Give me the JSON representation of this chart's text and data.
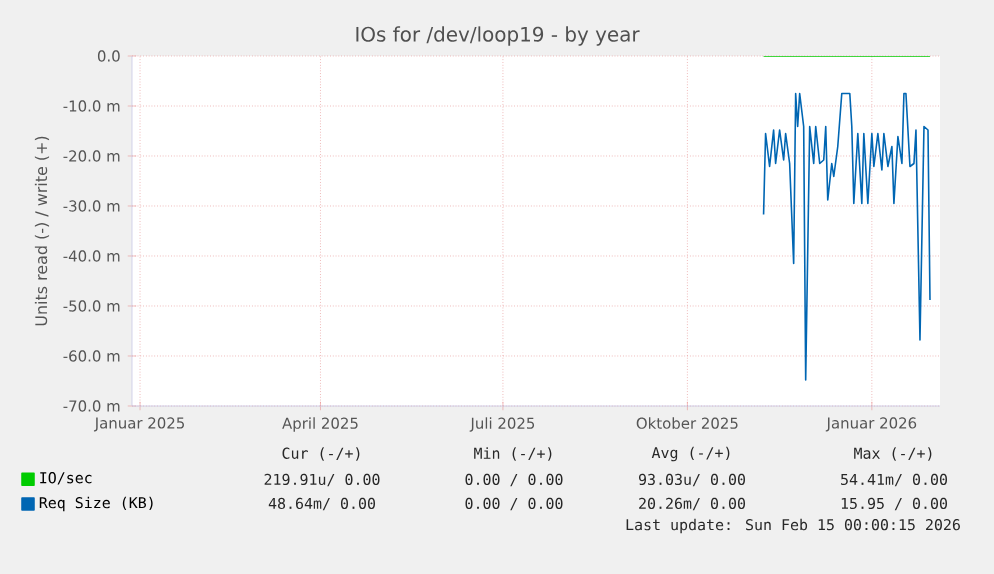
{
  "chart_data": {
    "type": "line",
    "title": "IOs for /dev/loop19 - by year",
    "ylabel": "Units read (-) / write (+)",
    "xlim": [
      "2024-12-28",
      "2026-02-04"
    ],
    "xticks": [
      {
        "value": "2025-01-01",
        "label": "Januar 2025"
      },
      {
        "value": "2025-04-01",
        "label": "April 2025"
      },
      {
        "value": "2025-07-01",
        "label": "Juli 2025"
      },
      {
        "value": "2025-10-01",
        "label": "Oktober 2025"
      },
      {
        "value": "2026-01-01",
        "label": "Januar 2026"
      }
    ],
    "ylim": [
      -70,
      0
    ],
    "yticks": [
      {
        "value": 0,
        "label": "0.0"
      },
      {
        "value": -10,
        "label": "-10.0 m"
      },
      {
        "value": -20,
        "label": "-20.0 m"
      },
      {
        "value": -30,
        "label": "-30.0 m"
      },
      {
        "value": -40,
        "label": "-40.0 m"
      },
      {
        "value": -50,
        "label": "-50.0 m"
      },
      {
        "value": -60,
        "label": "-60.0 m"
      },
      {
        "value": -70,
        "label": "-70.0 m"
      }
    ],
    "grid": true,
    "legend": "bottom left",
    "series": [
      {
        "name": "IO/sec",
        "color": "#00cc00",
        "x": [
          "2025-11-08",
          "2026-01-30"
        ],
        "values": [
          0,
          0
        ]
      },
      {
        "name": "Req Size (KB)",
        "color": "#0066b3",
        "x": [
          "2025-11-08",
          "2025-11-09",
          "2025-11-11",
          "2025-11-13",
          "2025-11-14",
          "2025-11-16",
          "2025-11-18",
          "2025-11-19",
          "2025-11-21",
          "2025-11-23",
          "2025-11-24",
          "2025-11-25",
          "2025-11-26",
          "2025-11-28",
          "2025-11-29",
          "2025-12-01",
          "2025-12-03",
          "2025-12-04",
          "2025-12-06",
          "2025-12-08",
          "2025-12-09",
          "2025-12-10",
          "2025-12-12",
          "2025-12-13",
          "2025-12-15",
          "2025-12-17",
          "2025-12-21",
          "2025-12-22",
          "2025-12-23",
          "2025-12-25",
          "2025-12-27",
          "2025-12-28",
          "2025-12-30",
          "2026-01-01",
          "2026-01-02",
          "2026-01-04",
          "2026-01-06",
          "2026-01-07",
          "2026-01-09",
          "2026-01-11",
          "2026-01-12",
          "2026-01-14",
          "2026-01-16",
          "2026-01-17",
          "2026-01-18",
          "2026-01-20",
          "2026-01-22",
          "2026-01-23",
          "2026-01-25",
          "2026-01-27",
          "2026-01-29",
          "2026-01-30"
        ],
        "values": [
          -31.7,
          -15.5,
          -22.1,
          -14.8,
          -21.5,
          -14.8,
          -20.8,
          -15.5,
          -21.5,
          -41.5,
          -7.5,
          -14.1,
          -7.5,
          -14.1,
          -64.8,
          -14.1,
          -21.5,
          -14.1,
          -21.5,
          -20.8,
          -14.1,
          -28.8,
          -21.5,
          -24.1,
          -18.1,
          -7.5,
          -7.5,
          -14.1,
          -29.5,
          -15.5,
          -29.5,
          -15.5,
          -29.5,
          -15.5,
          -22.1,
          -15.5,
          -22.8,
          -15.5,
          -22.1,
          -18.1,
          -29.5,
          -16.1,
          -21.5,
          -7.5,
          -7.5,
          -22.1,
          -21.5,
          -14.8,
          -56.8,
          -14.1,
          -14.8,
          -48.8
        ]
      }
    ],
    "annotations": [
      "Cur (-/+)",
      "Min (-/+)",
      "Avg (-/+)",
      "Max (-/+)",
      "219.91u/ 0.00",
      "0.00 / 0.00",
      "93.03u/ 0.00",
      "54.41m/ 0.00",
      "48.64m/ 0.00",
      "0.00 / 0.00",
      "20.26m/ 0.00",
      "15.95 / 0.00",
      "Last update: Sun Feb 15 00:00:15 2026"
    ]
  }
}
